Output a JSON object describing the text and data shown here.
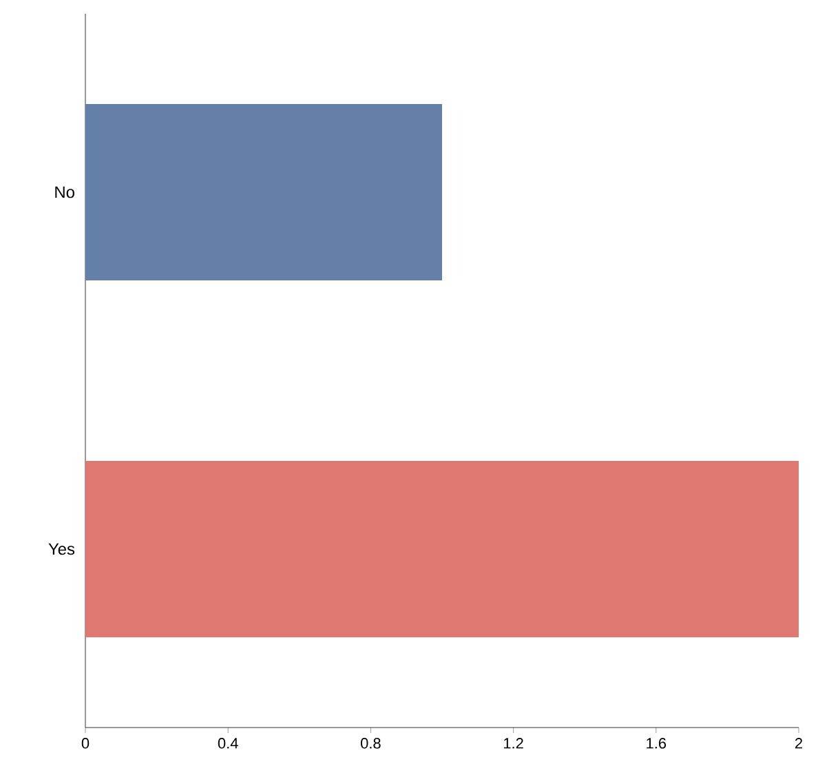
{
  "chart_data": {
    "type": "bar",
    "orientation": "horizontal",
    "categories": [
      "No",
      "Yes"
    ],
    "values": [
      1,
      2
    ],
    "colors": [
      "#6580a8",
      "#e07872"
    ],
    "xlim": [
      0,
      2
    ],
    "xticks": [
      0,
      0.4,
      0.8,
      1.2,
      1.6,
      2
    ],
    "grid": false
  }
}
